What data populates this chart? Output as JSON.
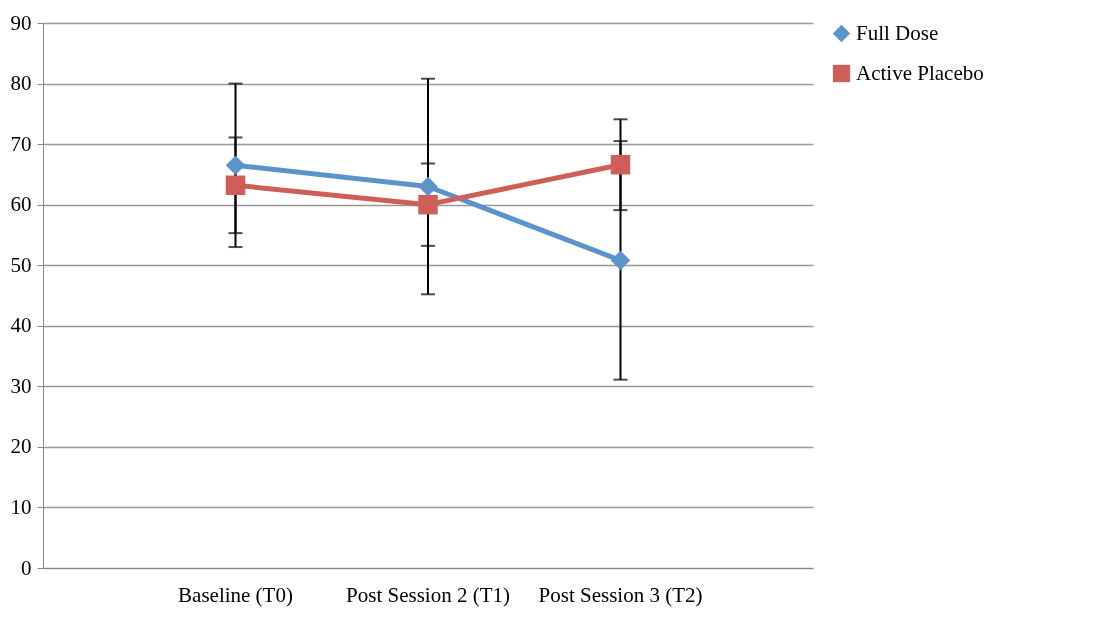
{
  "chart_data": {
    "type": "line",
    "categories": [
      "Baseline (T0)",
      "Post Session 2 (T1)",
      "Post Session 3 (T2)"
    ],
    "series": [
      {
        "name": "Full Dose",
        "color": "#5b93cb",
        "marker": "diamond",
        "values": [
          66.5,
          63.0,
          50.8
        ],
        "errors": [
          13.5,
          17.8,
          19.7
        ]
      },
      {
        "name": "Active  Placebo",
        "color": "#cd5f58",
        "marker": "square",
        "values": [
          63.2,
          60.0,
          66.6
        ],
        "errors": [
          7.9,
          6.8,
          7.5
        ]
      }
    ],
    "ylim": [
      0,
      90
    ],
    "yticks": [
      0,
      10,
      20,
      30,
      40,
      50,
      60,
      70,
      80,
      90
    ],
    "grid": "y",
    "legend": "right",
    "line_style": "solid"
  }
}
